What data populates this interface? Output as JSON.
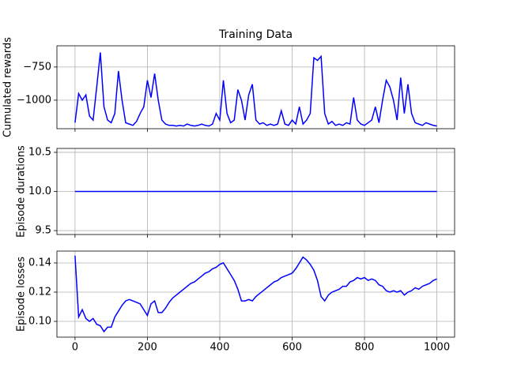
{
  "chart_data": [
    {
      "type": "line",
      "title": "Training Data",
      "ylabel": "Cumulated rewards",
      "color": "#0000ff",
      "grid": true,
      "x": [
        0,
        10,
        20,
        30,
        40,
        50,
        60,
        70,
        80,
        90,
        100,
        110,
        120,
        130,
        140,
        150,
        160,
        170,
        180,
        190,
        200,
        210,
        220,
        230,
        240,
        250,
        260,
        270,
        280,
        290,
        300,
        310,
        320,
        330,
        340,
        350,
        360,
        370,
        380,
        390,
        400,
        410,
        420,
        430,
        440,
        450,
        460,
        470,
        480,
        490,
        500,
        510,
        520,
        530,
        540,
        550,
        560,
        570,
        580,
        590,
        600,
        610,
        620,
        630,
        640,
        650,
        660,
        670,
        680,
        690,
        700,
        710,
        720,
        730,
        740,
        750,
        760,
        770,
        780,
        790,
        800,
        810,
        820,
        830,
        840,
        850,
        860,
        870,
        880,
        890,
        900,
        910,
        920,
        930,
        940,
        950,
        960,
        970,
        980,
        990,
        1000
      ],
      "values": [
        -1170,
        -950,
        -1000,
        -960,
        -1120,
        -1150,
        -900,
        -640,
        -1050,
        -1150,
        -1170,
        -1100,
        -780,
        -1000,
        -1170,
        -1180,
        -1190,
        -1160,
        -1100,
        -1050,
        -850,
        -980,
        -800,
        -1000,
        -1150,
        -1180,
        -1190,
        -1190,
        -1195,
        -1190,
        -1195,
        -1180,
        -1190,
        -1195,
        -1190,
        -1180,
        -1190,
        -1195,
        -1180,
        -1100,
        -1150,
        -850,
        -1100,
        -1170,
        -1150,
        -920,
        -1000,
        -1150,
        -960,
        -880,
        -1150,
        -1180,
        -1170,
        -1190,
        -1180,
        -1190,
        -1180,
        -1080,
        -1180,
        -1190,
        -1150,
        -1180,
        -1050,
        -1180,
        -1150,
        -1100,
        -680,
        -700,
        -670,
        -1100,
        -1180,
        -1160,
        -1190,
        -1180,
        -1190,
        -1170,
        -1180,
        -980,
        -1150,
        -1180,
        -1190,
        -1170,
        -1150,
        -1050,
        -1170,
        -1000,
        -850,
        -900,
        -1000,
        -1150,
        -830,
        -1100,
        -880,
        -1100,
        -1170,
        -1180,
        -1190,
        -1170,
        -1180,
        -1190,
        -1195
      ],
      "xlim": [
        -50,
        1049
      ],
      "xticks": [
        0,
        200,
        400,
        600,
        800,
        1000
      ],
      "ylim": [
        -1215,
        -590
      ],
      "yticks": [
        {
          "value": -1000,
          "label": "−1000"
        },
        {
          "value": -750,
          "label": "−750"
        }
      ]
    },
    {
      "type": "line",
      "ylabel": "Episode durations",
      "color": "#0000ff",
      "grid": true,
      "x": [
        0,
        1000
      ],
      "values": [
        10,
        10
      ],
      "xlim": [
        -50,
        1049
      ],
      "xticks": [
        0,
        200,
        400,
        600,
        800,
        1000
      ],
      "ylim": [
        9.45,
        10.55
      ],
      "yticks": [
        9.5,
        {
          "value": 10,
          "label": "10.0"
        },
        10.5
      ]
    },
    {
      "type": "line",
      "ylabel": "Episode losses",
      "color": "#0000ff",
      "grid": true,
      "x": [
        0,
        10,
        20,
        30,
        40,
        50,
        60,
        70,
        80,
        90,
        100,
        110,
        120,
        130,
        140,
        150,
        160,
        170,
        180,
        190,
        200,
        210,
        220,
        230,
        240,
        250,
        260,
        270,
        280,
        290,
        300,
        310,
        320,
        330,
        340,
        350,
        360,
        370,
        380,
        390,
        400,
        410,
        420,
        430,
        440,
        450,
        460,
        470,
        480,
        490,
        500,
        510,
        520,
        530,
        540,
        550,
        560,
        570,
        580,
        590,
        600,
        610,
        620,
        630,
        640,
        650,
        660,
        670,
        680,
        690,
        700,
        710,
        720,
        730,
        740,
        750,
        760,
        770,
        780,
        790,
        800,
        810,
        820,
        830,
        840,
        850,
        860,
        870,
        880,
        890,
        900,
        910,
        920,
        930,
        940,
        950,
        960,
        970,
        980,
        990,
        1000
      ],
      "values": [
        0.145,
        0.103,
        0.108,
        0.102,
        0.1,
        0.102,
        0.098,
        0.097,
        0.093,
        0.096,
        0.096,
        0.103,
        0.107,
        0.111,
        0.114,
        0.115,
        0.114,
        0.113,
        0.112,
        0.108,
        0.104,
        0.112,
        0.114,
        0.106,
        0.106,
        0.109,
        0.113,
        0.116,
        0.118,
        0.12,
        0.122,
        0.124,
        0.126,
        0.127,
        0.129,
        0.131,
        0.133,
        0.134,
        0.136,
        0.137,
        0.139,
        0.14,
        0.136,
        0.132,
        0.128,
        0.122,
        0.114,
        0.114,
        0.115,
        0.114,
        0.117,
        0.119,
        0.121,
        0.123,
        0.125,
        0.127,
        0.128,
        0.13,
        0.131,
        0.132,
        0.133,
        0.136,
        0.14,
        0.144,
        0.142,
        0.139,
        0.135,
        0.128,
        0.117,
        0.114,
        0.118,
        0.12,
        0.121,
        0.122,
        0.124,
        0.124,
        0.127,
        0.128,
        0.13,
        0.129,
        0.13,
        0.128,
        0.129,
        0.128,
        0.125,
        0.124,
        0.121,
        0.12,
        0.121,
        0.12,
        0.121,
        0.118,
        0.12,
        0.121,
        0.123,
        0.122,
        0.124,
        0.125,
        0.126,
        0.128,
        0.129
      ],
      "xlim": [
        -50,
        1049
      ],
      "xticks": [
        0,
        200,
        400,
        600,
        800,
        1000
      ],
      "ylim": [
        0.0892,
        0.1481
      ],
      "yticks": [
        {
          "value": 0.1,
          "label": "0.10"
        },
        {
          "value": 0.12,
          "label": "0.12"
        },
        {
          "value": 0.14,
          "label": "0.14"
        }
      ]
    }
  ]
}
